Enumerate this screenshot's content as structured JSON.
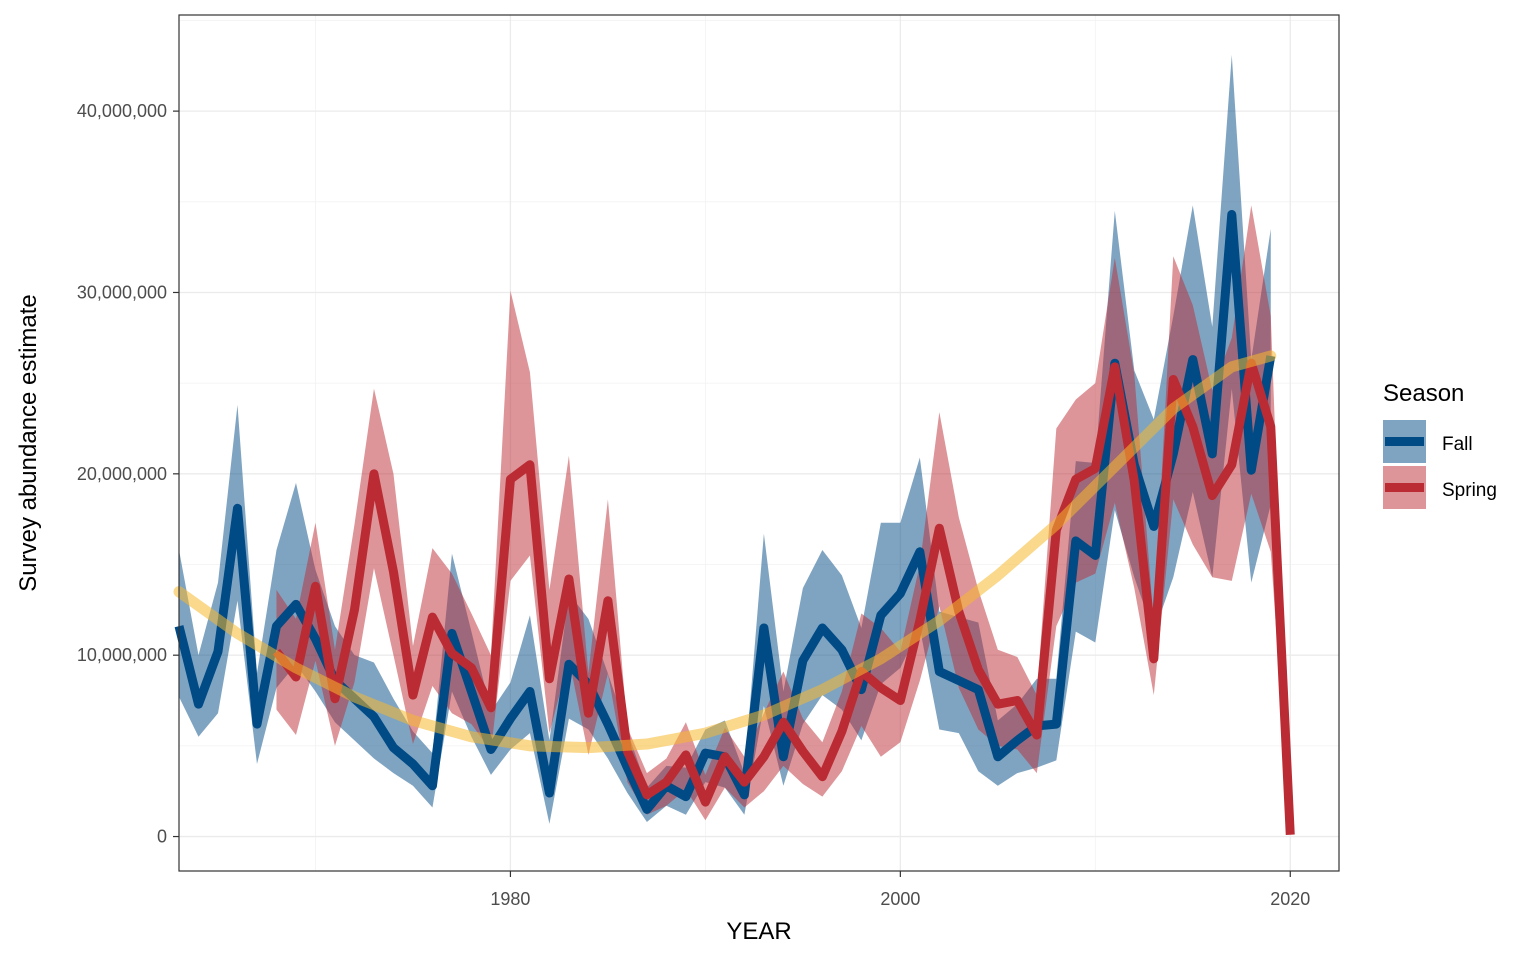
{
  "chart_data": {
    "type": "line",
    "xlabel": "YEAR",
    "ylabel": "Survey abundance estimate",
    "xlim": [
      1963,
      2022.5
    ],
    "ylim": [
      -1900000,
      45300000
    ],
    "x_ticks": [
      1980,
      2000,
      2020
    ],
    "x_tick_labels": [
      "1980",
      "2000",
      "2020"
    ],
    "y_ticks": [
      0,
      10000000,
      20000000,
      30000000,
      40000000
    ],
    "y_tick_labels": [
      "0",
      "10,000,000",
      "20,000,000",
      "30,000,000",
      "40,000,000"
    ],
    "grid": true,
    "legend": {
      "title": "Season",
      "position": "right"
    },
    "series": [
      {
        "name": "Fall",
        "color": "#004a86",
        "x": [
          1963,
          1964,
          1965,
          1966,
          1967,
          1968,
          1969,
          1970,
          1971,
          1972,
          1973,
          1974,
          1975,
          1976,
          1977,
          1978,
          1979,
          1980,
          1981,
          1982,
          1983,
          1984,
          1985,
          1986,
          1987,
          1988,
          1989,
          1990,
          1991,
          1992,
          1993,
          1994,
          1995,
          1996,
          1997,
          1998,
          1999,
          2000,
          2001,
          2002,
          2003,
          2004,
          2005,
          2006,
          2007,
          2008,
          2009,
          2010,
          2011,
          2012,
          2013,
          2014,
          2015,
          2016,
          2017,
          2018,
          2019
        ],
        "values": [
          11600000,
          7300000,
          10200000,
          18100000,
          6200000,
          11600000,
          12800000,
          10900000,
          8600000,
          7600000,
          6600000,
          4900000,
          4000000,
          2800000,
          11200000,
          8000000,
          4800000,
          6500000,
          8000000,
          2400000,
          9500000,
          8400000,
          6200000,
          3800000,
          1500000,
          2800000,
          2200000,
          4600000,
          4400000,
          2300000,
          11500000,
          4400000,
          9700000,
          11500000,
          10300000,
          8100000,
          12200000,
          13400000,
          15700000,
          9100000,
          8600000,
          8100000,
          4400000,
          5300000,
          6100000,
          6200000,
          16300000,
          15500000,
          26100000,
          20500000,
          17100000,
          21100000,
          26300000,
          21100000,
          34300000,
          20200000,
          26500000
        ],
        "lower": [
          7700000,
          5500000,
          6800000,
          13000000,
          4000000,
          8200000,
          9500000,
          8000000,
          6300000,
          5300000,
          4300000,
          3500000,
          2800000,
          1600000,
          8000000,
          5500000,
          3400000,
          4800000,
          5700000,
          700000,
          6500000,
          5900000,
          4300000,
          2400000,
          800000,
          1700000,
          1200000,
          3000000,
          2700000,
          1200000,
          7200000,
          2800000,
          6200000,
          7800000,
          7000000,
          5300000,
          8400000,
          9300000,
          11500000,
          5900000,
          5700000,
          3600000,
          2800000,
          3500000,
          3800000,
          4200000,
          11300000,
          10700000,
          18000000,
          14300000,
          11200000,
          14300000,
          19000000,
          14300000,
          24700000,
          14000000,
          18300000
        ],
        "upper": [
          15800000,
          10000000,
          14000000,
          23800000,
          9000000,
          15800000,
          19500000,
          14700000,
          11600000,
          10000000,
          9600000,
          7600000,
          5800000,
          4600000,
          15600000,
          11300000,
          6900000,
          8500000,
          12200000,
          5300000,
          13400000,
          12000000,
          9000000,
          5800000,
          2700000,
          3900000,
          3800000,
          5900000,
          6400000,
          3500000,
          16700000,
          8000000,
          13700000,
          15800000,
          14400000,
          11500000,
          17300000,
          17300000,
          20900000,
          12400000,
          12100000,
          11800000,
          6400000,
          7300000,
          8700000,
          8700000,
          20700000,
          20600000,
          34500000,
          25700000,
          23000000,
          28700000,
          34800000,
          28100000,
          43100000,
          26300000,
          33500000
        ]
      },
      {
        "name": "Spring",
        "color": "#bb2b33",
        "x": [
          1968,
          1969,
          1970,
          1971,
          1972,
          1973,
          1974,
          1975,
          1976,
          1977,
          1978,
          1979,
          1980,
          1981,
          1982,
          1983,
          1984,
          1985,
          1986,
          1987,
          1988,
          1989,
          1990,
          1991,
          1992,
          1993,
          1994,
          1995,
          1996,
          1997,
          1998,
          1999,
          2000,
          2001,
          2002,
          2003,
          2004,
          2005,
          2006,
          2007,
          2008,
          2009,
          2010,
          2011,
          2012,
          2013,
          2014,
          2015,
          2016,
          2017,
          2018,
          2019,
          2020
        ],
        "values": [
          10200000,
          8800000,
          13800000,
          7600000,
          12500000,
          20000000,
          14600000,
          7800000,
          12100000,
          10100000,
          9300000,
          7100000,
          19700000,
          20500000,
          8700000,
          14200000,
          6800000,
          13000000,
          4700000,
          2300000,
          3000000,
          4500000,
          1900000,
          4400000,
          3000000,
          4400000,
          6300000,
          4700000,
          3300000,
          5800000,
          9100000,
          8200000,
          7500000,
          11900000,
          17000000,
          12400000,
          9200000,
          7300000,
          7500000,
          5600000,
          16900000,
          19700000,
          20300000,
          25900000,
          19600000,
          9800000,
          25200000,
          22600000,
          18800000,
          20500000,
          26100000,
          22600000,
          100000
        ],
        "lower": [
          7000000,
          5600000,
          9700000,
          5000000,
          8500000,
          14800000,
          10000000,
          5100000,
          8300000,
          6800000,
          6200000,
          4700000,
          14100000,
          15500000,
          5700000,
          9800000,
          4500000,
          9000000,
          3000000,
          1200000,
          1700000,
          2600000,
          900000,
          2700000,
          1600000,
          2500000,
          3900000,
          2900000,
          2200000,
          3600000,
          6100000,
          4400000,
          5200000,
          8600000,
          12700000,
          8200000,
          5900000,
          5000000,
          4800000,
          3500000,
          11600000,
          14000000,
          14500000,
          18400000,
          13700000,
          7800000,
          18600000,
          16100000,
          14300000,
          14100000,
          18900000,
          15700000,
          100000
        ],
        "upper": [
          13600000,
          12000000,
          17300000,
          10300000,
          17200000,
          24700000,
          20000000,
          10500000,
          15900000,
          14500000,
          12300000,
          10000000,
          30100000,
          25600000,
          13600000,
          21000000,
          9000000,
          18600000,
          6000000,
          3500000,
          4300000,
          6300000,
          3400000,
          6000000,
          4400000,
          6800000,
          9100000,
          6500000,
          5200000,
          8000000,
          12300000,
          11500000,
          10200000,
          15000000,
          23400000,
          17600000,
          13600000,
          10300000,
          9900000,
          7800000,
          22500000,
          24100000,
          25000000,
          31900000,
          25500000,
          11800000,
          32000000,
          29300000,
          24600000,
          27500000,
          34800000,
          28700000,
          100000
        ]
      },
      {
        "name": "",
        "color": "#f5b82e",
        "x": [
          1963,
          1966,
          1969,
          1972,
          1975,
          1978,
          1981,
          1984,
          1987,
          1990,
          1993,
          1996,
          1999,
          2002,
          2005,
          2008,
          2011,
          2014,
          2017,
          2019
        ],
        "values": [
          13500000,
          11200000,
          9300000,
          7700000,
          6400000,
          5500000,
          5000000,
          4900000,
          5100000,
          5700000,
          6700000,
          8100000,
          9800000,
          11900000,
          14400000,
          17200000,
          20400000,
          23600000,
          25900000,
          26500000
        ]
      }
    ]
  }
}
